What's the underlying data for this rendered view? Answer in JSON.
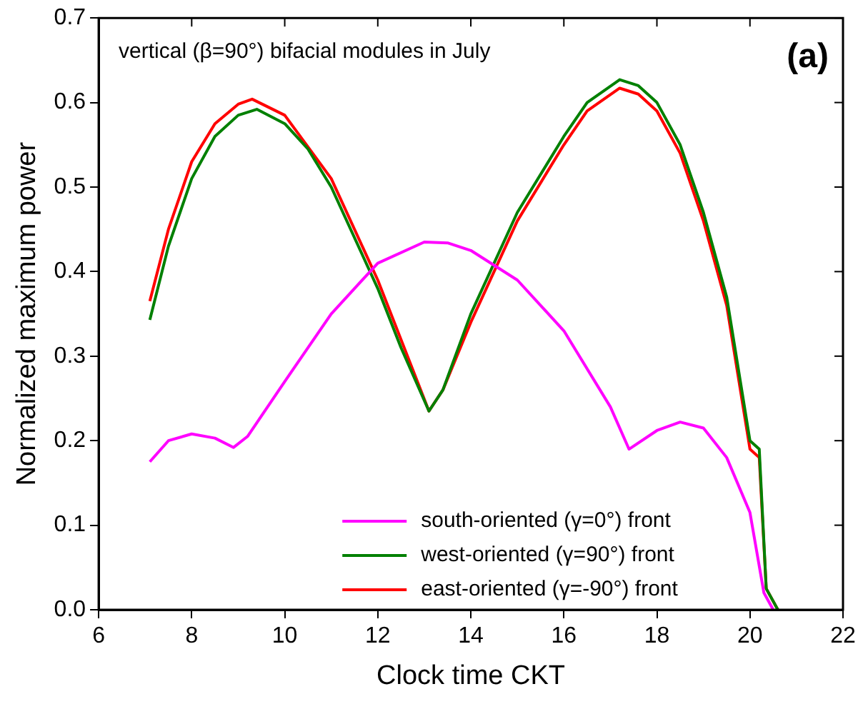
{
  "chart_data": {
    "type": "line",
    "xlabel": "Clock time CKT",
    "ylabel": "Normalized maximum power",
    "annotations": [
      "vertical (β=90°) bifacial modules in July",
      "(a)"
    ],
    "xlim": [
      6,
      22
    ],
    "xticks": [
      6,
      8,
      10,
      12,
      14,
      16,
      18,
      20,
      22
    ],
    "ylim": [
      0,
      0.7
    ],
    "yticks": [
      {
        "value": 0,
        "label": "0.0"
      },
      0.1,
      0.2,
      0.3,
      0.4,
      0.5,
      0.6,
      0.7
    ],
    "grid": false,
    "legend": "bottom",
    "marker": "none",
    "line_style": "solid",
    "series": [
      {
        "name": "south-oriented (γ=0°) front",
        "color": "#ff00ff",
        "x": [
          7.1,
          7.5,
          8,
          8.5,
          8.9,
          9.2,
          10,
          11,
          12,
          13,
          13.5,
          14,
          15,
          16,
          17,
          17.4,
          18,
          18.5,
          19,
          19.5,
          20,
          20.3,
          20.5
        ],
        "values": [
          0.175,
          0.2,
          0.208,
          0.203,
          0.192,
          0.205,
          0.27,
          0.35,
          0.41,
          0.435,
          0.434,
          0.425,
          0.39,
          0.33,
          0.24,
          0.19,
          0.212,
          0.222,
          0.215,
          0.18,
          0.115,
          0.02,
          0
        ]
      },
      {
        "name": "west-oriented (γ=90°) front",
        "color": "#008000",
        "x": [
          7.1,
          7.5,
          8,
          8.5,
          9,
          9.4,
          10,
          10.5,
          11,
          12,
          12.5,
          13.1,
          13.4,
          14,
          15,
          16,
          16.5,
          17.2,
          17.6,
          18,
          18.5,
          19,
          19.5,
          20,
          20.2,
          20.35,
          20.6
        ],
        "values": [
          0.343,
          0.43,
          0.51,
          0.56,
          0.585,
          0.592,
          0.575,
          0.545,
          0.5,
          0.38,
          0.31,
          0.235,
          0.26,
          0.35,
          0.47,
          0.56,
          0.6,
          0.627,
          0.62,
          0.6,
          0.55,
          0.47,
          0.37,
          0.2,
          0.19,
          0.025,
          0
        ]
      },
      {
        "name": "east-oriented (γ=-90°) front",
        "color": "#ff0000",
        "x": [
          7.1,
          7.5,
          8,
          8.5,
          9,
          9.3,
          10,
          11,
          12,
          13.1,
          13.4,
          14,
          15,
          16,
          16.5,
          17.2,
          17.6,
          18,
          18.5,
          19,
          19.5,
          20,
          20.2,
          20.35,
          20.6
        ],
        "values": [
          0.365,
          0.45,
          0.53,
          0.575,
          0.598,
          0.604,
          0.585,
          0.51,
          0.39,
          0.235,
          0.26,
          0.34,
          0.46,
          0.55,
          0.59,
          0.617,
          0.61,
          0.59,
          0.54,
          0.46,
          0.36,
          0.19,
          0.18,
          0.025,
          0
        ]
      }
    ]
  }
}
